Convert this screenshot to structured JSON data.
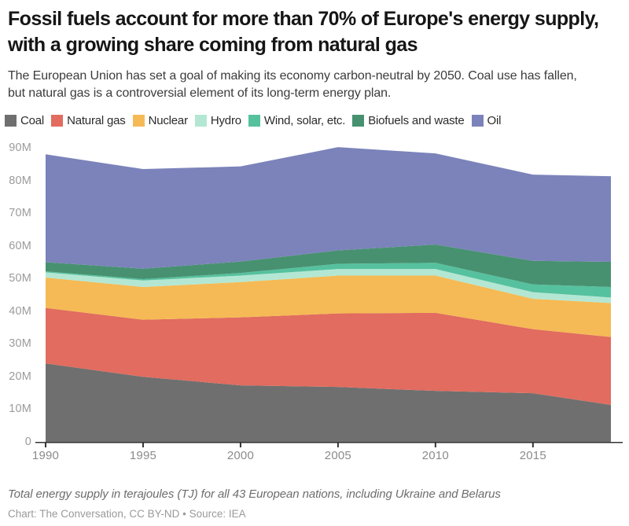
{
  "header": {
    "title": "Fossil fuels account for more than 70% of Europe's energy supply, with a growing share coming from natural gas",
    "subtitle": "The European Union has set a goal of making its economy carbon-neutral by 2050. Coal use has fallen, but natural gas is a controversial element of its long-term energy plan."
  },
  "chart_data": {
    "type": "area",
    "stacked": true,
    "x": [
      1990,
      1995,
      2000,
      2005,
      2010,
      2015,
      2019
    ],
    "series": [
      {
        "name": "Coal",
        "color": "#6f6f6f",
        "values": [
          24.0,
          19.9,
          17.3,
          16.8,
          15.6,
          14.9,
          11.3
        ]
      },
      {
        "name": "Natural gas",
        "color": "#e16c5f",
        "values": [
          17.0,
          17.5,
          20.8,
          22.5,
          23.9,
          19.6,
          20.8
        ]
      },
      {
        "name": "Nuclear",
        "color": "#f5ba55",
        "values": [
          9.3,
          10.0,
          10.8,
          11.6,
          11.4,
          9.3,
          10.4
        ]
      },
      {
        "name": "Hydro",
        "color": "#b3e7d3",
        "values": [
          1.6,
          2.0,
          2.0,
          2.0,
          2.0,
          2.0,
          1.7
        ]
      },
      {
        "name": "Wind, solar, etc.",
        "color": "#56c19e",
        "values": [
          0.3,
          0.4,
          0.8,
          1.6,
          1.9,
          2.4,
          3.2
        ]
      },
      {
        "name": "Biofuels and waste",
        "color": "#479170",
        "values": [
          2.8,
          3.2,
          3.5,
          4.1,
          5.6,
          7.2,
          7.7
        ]
      },
      {
        "name": "Oil",
        "color": "#7b83ba",
        "values": [
          33.0,
          30.5,
          29.1,
          31.6,
          27.9,
          26.4,
          26.2
        ]
      }
    ],
    "ylim": [
      0,
      90
    ],
    "y_tick_labels": [
      "0",
      "10M",
      "20M",
      "30M",
      "40M",
      "50M",
      "60M",
      "70M",
      "80M",
      "90M"
    ],
    "x_tick_labels": [
      "1990",
      "1995",
      "2000",
      "2005",
      "2010",
      "2015"
    ],
    "grid": false,
    "legend_position": "top",
    "axis_color": "#333333"
  },
  "footer": {
    "note": "Total energy supply in terajoules (TJ) for all 43 European nations, including Ukraine and Belarus",
    "credit": "Chart: The Conversation, CC BY-ND • Source: IEA"
  }
}
